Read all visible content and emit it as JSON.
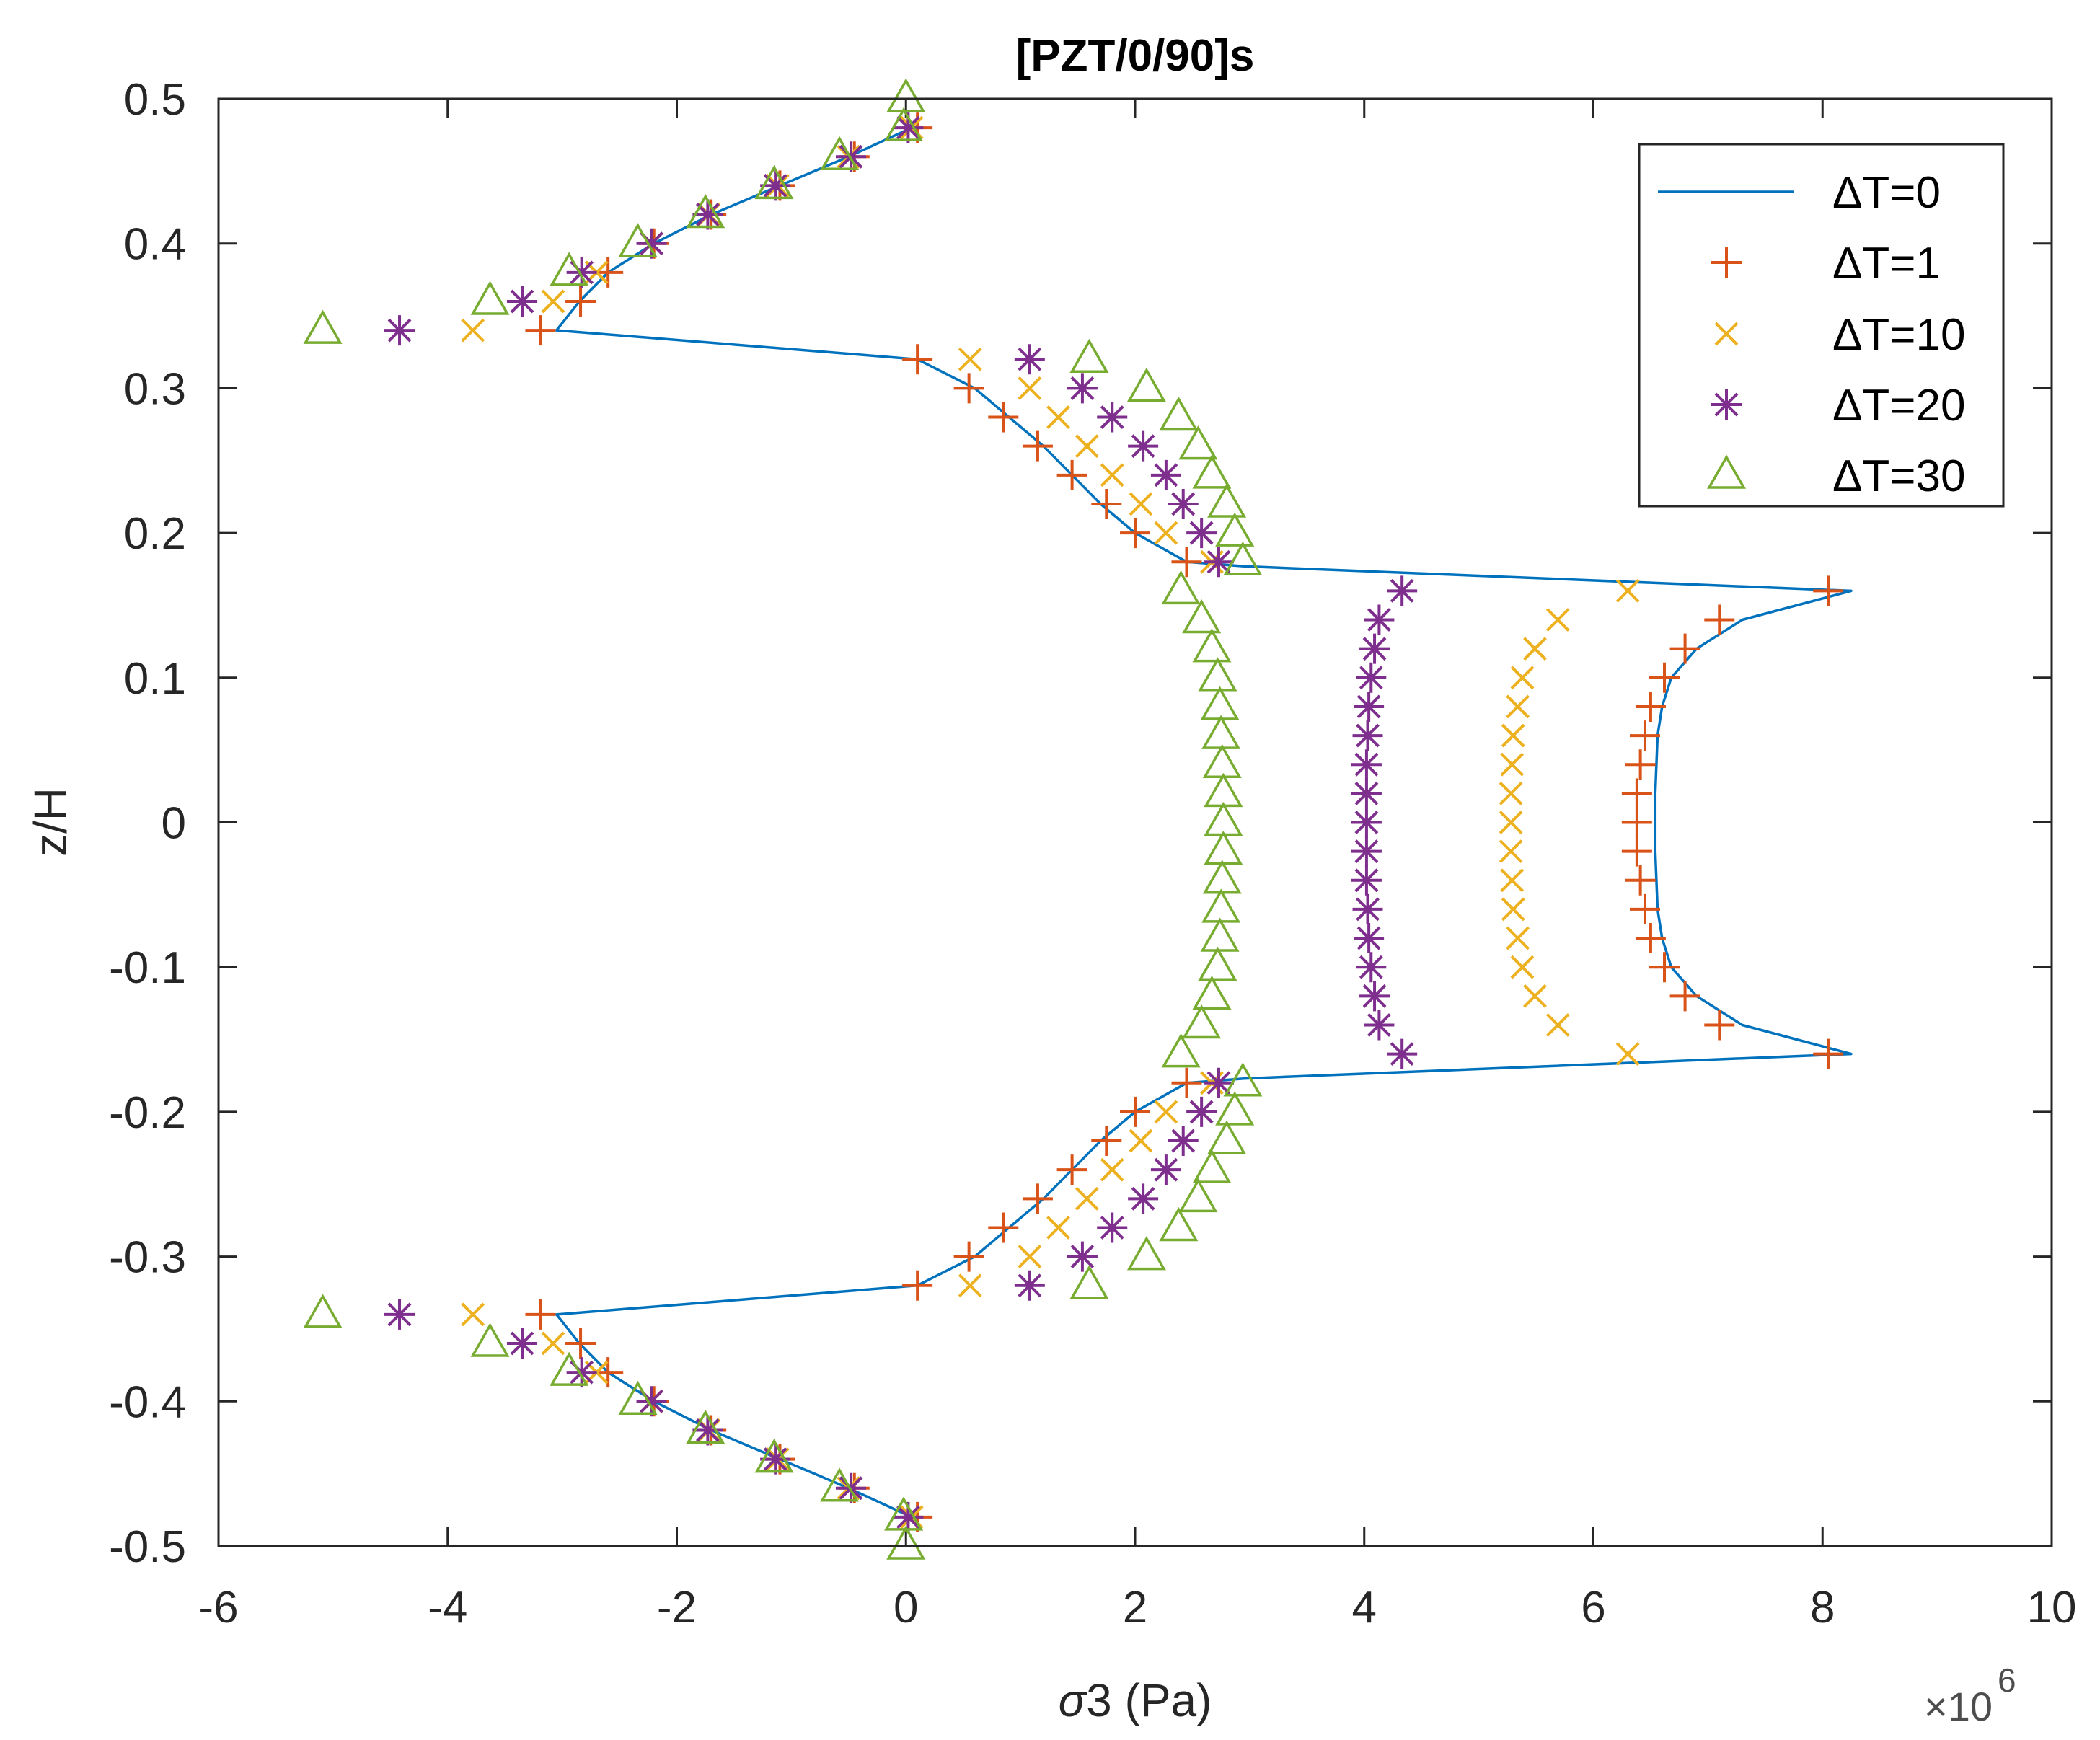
{
  "chart_data": {
    "type": "line",
    "title": "[PZT/0/90]s",
    "xlabel": {
      "symbol": "σ",
      "text": "3 (Pa)"
    },
    "ylabel": "z/H",
    "x_exponent_base": "×10",
    "x_exponent": "6",
    "xlim": [
      -6,
      10
    ],
    "ylim": [
      -0.5,
      0.5
    ],
    "xticks": [
      -6,
      -4,
      -2,
      0,
      2,
      4,
      6,
      8,
      10
    ],
    "xtick_labels": [
      "-6",
      "-4",
      "-2",
      "0",
      "2",
      "4",
      "6",
      "8",
      "10"
    ],
    "yticks": [
      0.5,
      0.4,
      0.3,
      0.2,
      0.1,
      0,
      -0.1,
      -0.2,
      -0.3,
      -0.4,
      -0.5
    ],
    "ytick_labels": [
      "0.5",
      "0.4",
      "0.3",
      "0.2",
      "0.1",
      "0",
      "-0.1",
      "-0.2",
      "-0.3",
      "-0.4",
      "-0.5"
    ],
    "grid": false,
    "legend_position": "top-right",
    "series": [
      {
        "name": "ΔT=0",
        "style": "line",
        "color": "#0072BD",
        "points": [
          [
            0.05,
            0.48
          ],
          [
            -0.5,
            0.46
          ],
          [
            -1.1,
            0.44
          ],
          [
            -1.7,
            0.42
          ],
          [
            -2.2,
            0.4
          ],
          [
            -2.6,
            0.38
          ],
          [
            -2.85,
            0.36
          ],
          [
            -3.05,
            0.34
          ],
          [
            0.1,
            0.32
          ],
          [
            0.6,
            0.3
          ],
          [
            0.9,
            0.28
          ],
          [
            1.2,
            0.26
          ],
          [
            1.45,
            0.24
          ],
          [
            1.7,
            0.22
          ],
          [
            2.0,
            0.2
          ],
          [
            2.45,
            0.18
          ],
          [
            2.95,
            0.177
          ],
          [
            8.25,
            0.16
          ],
          [
            7.3,
            0.14
          ],
          [
            6.9,
            0.12
          ],
          [
            6.68,
            0.1
          ],
          [
            6.6,
            0.08
          ],
          [
            6.56,
            0.06
          ],
          [
            6.55,
            0.04
          ],
          [
            6.54,
            0.02
          ],
          [
            6.54,
            0
          ],
          [
            6.54,
            -0.02
          ],
          [
            6.55,
            -0.04
          ],
          [
            6.56,
            -0.06
          ],
          [
            6.6,
            -0.08
          ],
          [
            6.68,
            -0.1
          ],
          [
            6.9,
            -0.12
          ],
          [
            7.3,
            -0.14
          ],
          [
            8.25,
            -0.16
          ],
          [
            2.95,
            -0.177
          ],
          [
            2.45,
            -0.18
          ],
          [
            2.0,
            -0.2
          ],
          [
            1.7,
            -0.22
          ],
          [
            1.45,
            -0.24
          ],
          [
            1.2,
            -0.26
          ],
          [
            0.9,
            -0.28
          ],
          [
            0.6,
            -0.3
          ],
          [
            0.1,
            -0.32
          ],
          [
            -3.05,
            -0.34
          ],
          [
            -2.85,
            -0.36
          ],
          [
            -2.6,
            -0.38
          ],
          [
            -2.2,
            -0.4
          ],
          [
            -1.7,
            -0.42
          ],
          [
            -1.1,
            -0.44
          ],
          [
            -0.5,
            -0.46
          ],
          [
            0.05,
            -0.48
          ]
        ]
      },
      {
        "name": "ΔT=1",
        "style": "plus",
        "color": "#D95319",
        "points": [
          [
            0.1,
            0.48
          ],
          [
            -0.45,
            0.46
          ],
          [
            -1.1,
            0.44
          ],
          [
            -1.7,
            0.42
          ],
          [
            -2.2,
            0.4
          ],
          [
            -2.6,
            0.38
          ],
          [
            -2.84,
            0.36
          ],
          [
            -3.19,
            0.34
          ],
          [
            0.1,
            0.32
          ],
          [
            0.55,
            0.3
          ],
          [
            0.85,
            0.28
          ],
          [
            1.15,
            0.26
          ],
          [
            1.45,
            0.24
          ],
          [
            1.75,
            0.22
          ],
          [
            2.0,
            0.2
          ],
          [
            2.45,
            0.18
          ],
          [
            8.05,
            0.16
          ],
          [
            7.1,
            0.14
          ],
          [
            6.8,
            0.12
          ],
          [
            6.62,
            0.1
          ],
          [
            6.5,
            0.08
          ],
          [
            6.45,
            0.06
          ],
          [
            6.41,
            0.04
          ],
          [
            6.38,
            0.02
          ],
          [
            6.38,
            0
          ],
          [
            6.38,
            -0.02
          ],
          [
            6.41,
            -0.04
          ],
          [
            6.45,
            -0.06
          ],
          [
            6.5,
            -0.08
          ],
          [
            6.62,
            -0.1
          ],
          [
            6.8,
            -0.12
          ],
          [
            7.1,
            -0.14
          ],
          [
            8.05,
            -0.16
          ],
          [
            2.45,
            -0.18
          ],
          [
            2.0,
            -0.2
          ],
          [
            1.75,
            -0.22
          ],
          [
            1.45,
            -0.24
          ],
          [
            1.15,
            -0.26
          ],
          [
            0.85,
            -0.28
          ],
          [
            0.55,
            -0.3
          ],
          [
            0.1,
            -0.32
          ],
          [
            -3.19,
            -0.34
          ],
          [
            -2.84,
            -0.36
          ],
          [
            -2.6,
            -0.38
          ],
          [
            -2.2,
            -0.4
          ],
          [
            -1.7,
            -0.42
          ],
          [
            -1.1,
            -0.44
          ],
          [
            -0.45,
            -0.46
          ],
          [
            0.1,
            -0.48
          ]
        ]
      },
      {
        "name": "ΔT=10",
        "style": "x",
        "color": "#EDB120",
        "points": [
          [
            0.05,
            0.48
          ],
          [
            -0.5,
            0.46
          ],
          [
            -1.12,
            0.44
          ],
          [
            -1.72,
            0.42
          ],
          [
            -2.22,
            0.4
          ],
          [
            -2.7,
            0.38
          ],
          [
            -3.08,
            0.36
          ],
          [
            -3.78,
            0.34
          ],
          [
            0.56,
            0.32
          ],
          [
            1.08,
            0.3
          ],
          [
            1.33,
            0.28
          ],
          [
            1.58,
            0.26
          ],
          [
            1.8,
            0.24
          ],
          [
            2.05,
            0.22
          ],
          [
            2.27,
            0.2
          ],
          [
            2.67,
            0.18
          ],
          [
            6.3,
            0.16
          ],
          [
            5.69,
            0.14
          ],
          [
            5.49,
            0.12
          ],
          [
            5.38,
            0.1
          ],
          [
            5.34,
            0.08
          ],
          [
            5.3,
            0.06
          ],
          [
            5.29,
            0.04
          ],
          [
            5.28,
            0.02
          ],
          [
            5.28,
            0
          ],
          [
            5.28,
            -0.02
          ],
          [
            5.29,
            -0.04
          ],
          [
            5.3,
            -0.06
          ],
          [
            5.34,
            -0.08
          ],
          [
            5.38,
            -0.1
          ],
          [
            5.49,
            -0.12
          ],
          [
            5.69,
            -0.14
          ],
          [
            6.3,
            -0.16
          ],
          [
            2.67,
            -0.18
          ],
          [
            2.27,
            -0.2
          ],
          [
            2.05,
            -0.22
          ],
          [
            1.8,
            -0.24
          ],
          [
            1.58,
            -0.26
          ],
          [
            1.33,
            -0.28
          ],
          [
            1.08,
            -0.3
          ],
          [
            0.56,
            -0.32
          ],
          [
            -3.78,
            -0.34
          ],
          [
            -3.08,
            -0.36
          ],
          [
            -2.7,
            -0.38
          ],
          [
            -2.22,
            -0.4
          ],
          [
            -1.72,
            -0.42
          ],
          [
            -1.12,
            -0.44
          ],
          [
            -0.5,
            -0.46
          ],
          [
            0.05,
            -0.48
          ]
        ]
      },
      {
        "name": "ΔT=20",
        "style": "star",
        "color": "#7E2F8E",
        "points": [
          [
            0.02,
            0.48
          ],
          [
            -0.48,
            0.46
          ],
          [
            -1.14,
            0.44
          ],
          [
            -1.73,
            0.42
          ],
          [
            -2.22,
            0.4
          ],
          [
            -2.83,
            0.38
          ],
          [
            -3.35,
            0.36
          ],
          [
            -4.42,
            0.34
          ],
          [
            1.08,
            0.32
          ],
          [
            1.54,
            0.3
          ],
          [
            1.8,
            0.28
          ],
          [
            2.07,
            0.26
          ],
          [
            2.27,
            0.24
          ],
          [
            2.42,
            0.22
          ],
          [
            2.58,
            0.2
          ],
          [
            2.73,
            0.18
          ],
          [
            4.33,
            0.16
          ],
          [
            4.13,
            0.14
          ],
          [
            4.09,
            0.12
          ],
          [
            4.06,
            0.1
          ],
          [
            4.04,
            0.08
          ],
          [
            4.03,
            0.06
          ],
          [
            4.02,
            0.04
          ],
          [
            4.02,
            0.02
          ],
          [
            4.02,
            0
          ],
          [
            4.02,
            -0.02
          ],
          [
            4.02,
            -0.04
          ],
          [
            4.03,
            -0.06
          ],
          [
            4.04,
            -0.08
          ],
          [
            4.06,
            -0.1
          ],
          [
            4.09,
            -0.12
          ],
          [
            4.13,
            -0.14
          ],
          [
            4.33,
            -0.16
          ],
          [
            2.73,
            -0.18
          ],
          [
            2.58,
            -0.2
          ],
          [
            2.42,
            -0.22
          ],
          [
            2.27,
            -0.24
          ],
          [
            2.07,
            -0.26
          ],
          [
            1.8,
            -0.28
          ],
          [
            1.54,
            -0.3
          ],
          [
            1.08,
            -0.32
          ],
          [
            -4.42,
            -0.34
          ],
          [
            -3.35,
            -0.36
          ],
          [
            -2.83,
            -0.38
          ],
          [
            -2.22,
            -0.4
          ],
          [
            -1.73,
            -0.42
          ],
          [
            -1.14,
            -0.44
          ],
          [
            -0.48,
            -0.46
          ],
          [
            0.02,
            -0.48
          ]
        ]
      },
      {
        "name": "ΔT=30",
        "style": "triangle",
        "color": "#77AC30",
        "points": [
          [
            0.0,
            0.5
          ],
          [
            -0.02,
            0.48
          ],
          [
            -0.58,
            0.46
          ],
          [
            -1.15,
            0.44
          ],
          [
            -1.75,
            0.42
          ],
          [
            -2.34,
            0.4
          ],
          [
            -2.94,
            0.38
          ],
          [
            -3.63,
            0.36
          ],
          [
            -5.09,
            0.34
          ],
          [
            1.6,
            0.32
          ],
          [
            2.1,
            0.3
          ],
          [
            2.38,
            0.28
          ],
          [
            2.55,
            0.26
          ],
          [
            2.67,
            0.24
          ],
          [
            2.8,
            0.22
          ],
          [
            2.87,
            0.2
          ],
          [
            2.94,
            0.18
          ],
          [
            2.4,
            0.16
          ],
          [
            2.58,
            0.14
          ],
          [
            2.67,
            0.12
          ],
          [
            2.72,
            0.1
          ],
          [
            2.74,
            0.08
          ],
          [
            2.75,
            0.06
          ],
          [
            2.76,
            0.04
          ],
          [
            2.77,
            0.02
          ],
          [
            2.77,
            0
          ],
          [
            2.77,
            -0.02
          ],
          [
            2.76,
            -0.04
          ],
          [
            2.75,
            -0.06
          ],
          [
            2.74,
            -0.08
          ],
          [
            2.72,
            -0.1
          ],
          [
            2.67,
            -0.12
          ],
          [
            2.58,
            -0.14
          ],
          [
            2.4,
            -0.16
          ],
          [
            2.94,
            -0.18
          ],
          [
            2.87,
            -0.2
          ],
          [
            2.8,
            -0.22
          ],
          [
            2.67,
            -0.24
          ],
          [
            2.55,
            -0.26
          ],
          [
            2.38,
            -0.28
          ],
          [
            2.1,
            -0.3
          ],
          [
            1.6,
            -0.32
          ],
          [
            -5.09,
            -0.34
          ],
          [
            -3.63,
            -0.36
          ],
          [
            -2.94,
            -0.38
          ],
          [
            -2.34,
            -0.4
          ],
          [
            -1.75,
            -0.42
          ],
          [
            -1.15,
            -0.44
          ],
          [
            -0.58,
            -0.46
          ],
          [
            -0.02,
            -0.48
          ],
          [
            0.0,
            -0.5
          ]
        ]
      }
    ]
  }
}
